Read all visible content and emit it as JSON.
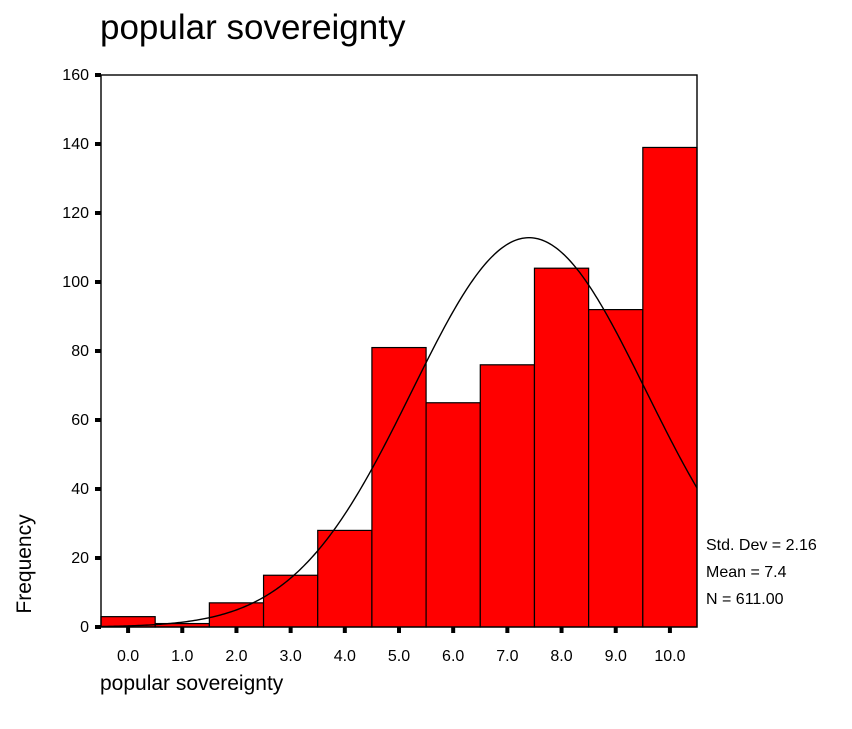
{
  "chart_data": {
    "type": "bar",
    "title": "popular sovereignty",
    "xlabel": "popular sovereignty",
    "ylabel": "Frequency",
    "categories": [
      "0.0",
      "1.0",
      "2.0",
      "3.0",
      "4.0",
      "5.0",
      "6.0",
      "7.0",
      "8.0",
      "9.0",
      "10.0"
    ],
    "values": [
      3,
      1,
      7,
      15,
      28,
      81,
      65,
      76,
      104,
      92,
      139
    ],
    "ylim": [
      0,
      160
    ],
    "yticks": [
      "0",
      "20",
      "40",
      "60",
      "80",
      "100",
      "120",
      "140",
      "160"
    ],
    "normal_curve": {
      "mean": 7.4,
      "std_dev": 2.16,
      "n": 611
    },
    "stats": {
      "std_dev": "Std. Dev = 2.16",
      "mean": "Mean = 7.4",
      "n": "N = 611.00"
    },
    "colors": {
      "bar_fill": "#ff0000",
      "bar_stroke": "#000000",
      "curve": "#000000"
    },
    "grid": false
  }
}
